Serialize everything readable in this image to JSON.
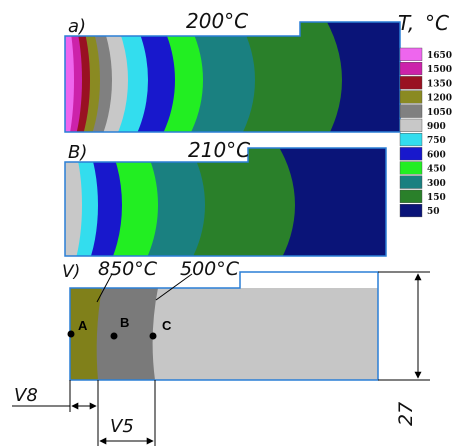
{
  "panel_a": {
    "label": "a)",
    "temperature": "200°C"
  },
  "panel_b": {
    "label": "B)",
    "temperature": "210°C"
  },
  "panel_c": {
    "label": "V)",
    "temp_left": "850°C",
    "temp_right": "500°C"
  },
  "legend": {
    "title_T": "T,",
    "title_unit": "°C",
    "entries": [
      {
        "label": "1650",
        "color": "#ee66ee"
      },
      {
        "label": "1500",
        "color": "#cc22aa"
      },
      {
        "label": "1350",
        "color": "#991122"
      },
      {
        "label": "1200",
        "color": "#8a8a22"
      },
      {
        "label": "1050",
        "color": "#808080"
      },
      {
        "label": "900",
        "color": "#c8c8c8"
      },
      {
        "label": "750",
        "color": "#33ddee"
      },
      {
        "label": "600",
        "color": "#1818cc"
      },
      {
        "label": "450",
        "color": "#22ee22"
      },
      {
        "label": "300",
        "color": "#1a8080"
      },
      {
        "label": "150",
        "color": "#2a802a"
      },
      {
        "label": "50",
        "color": "#0a1478"
      }
    ]
  },
  "points": [
    "A",
    "B",
    "C"
  ],
  "dimensions": {
    "v8": "V8",
    "v5": "V5",
    "d27": "27"
  },
  "colors": {
    "outline": "#2a7fd6",
    "zone_hot": "#80801a",
    "zone_mid": "#7a7a7a",
    "zone_cold": "#c6c6c6"
  }
}
